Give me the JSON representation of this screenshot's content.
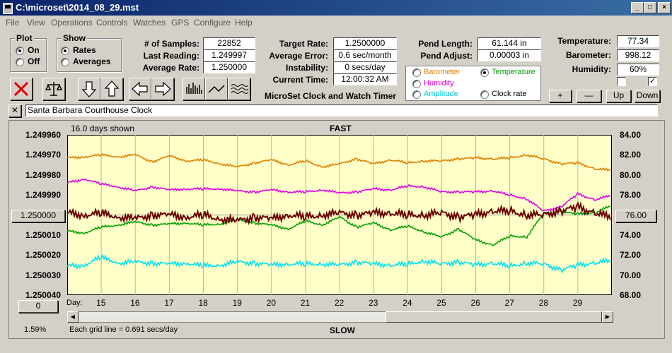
{
  "window": {
    "title": "C:\\microset\\2014_08_29.mst"
  },
  "menu": [
    "File",
    "View",
    "Operations",
    "Controls",
    "Watches",
    "GPS",
    "Configure",
    "Help"
  ],
  "plot_group": {
    "title": "Plot",
    "on": "On",
    "off": "Off",
    "selected": "On"
  },
  "show_group": {
    "title": "Show",
    "rates": "Rates",
    "averages": "Averages",
    "selected": "Rates"
  },
  "stats": {
    "samples_label": "# of Samples:",
    "samples": "22852",
    "last_label": "Last Reading:",
    "last": "1.249997",
    "avg_rate_label": "Average Rate:",
    "avg_rate": "1.250000",
    "target_label": "Target Rate:",
    "target": "1.2500000",
    "avg_err_label": "Average Error:",
    "avg_err": "0.6 sec/month",
    "instab_label": "Instability:",
    "instab": "0 secs/day",
    "time_label": "Current Time:",
    "time": "12:00:32 AM",
    "pend_len_label": "Pend Length:",
    "pend_len": "61.144 in",
    "pend_adj_label": "Pend Adjust:",
    "pend_adj": "0.00003 in",
    "temp_label": "Temperature:",
    "temp": "77.34",
    "baro_label": "Barometer:",
    "baro": "998.12",
    "hum_label": "Humidity:",
    "hum": "60%"
  },
  "app_caption": "MicroSet Clock and Watch Timer",
  "sensor_select": {
    "barometer": "Barometer",
    "temperature": "Temperature",
    "humidity": "Humidity",
    "amplitude": "Amplitude",
    "clock_rate": "Clock rate",
    "selected": "Temperature"
  },
  "small_buttons": {
    "plus": "+",
    "minus": "—",
    "up": "Up",
    "down": "Down"
  },
  "clock_name": "Santa Barbara Courthouse Clock",
  "close_x": "✕",
  "chart_header": {
    "days_shown": "16.0 days shown",
    "fast": "FAST",
    "slow": "SLOW",
    "grid_note": "Each grid line = 0.691 secs/day",
    "percent": "1.59%",
    "center_left": "1.250000",
    "center_right": "76.00",
    "zero_btn": "0",
    "day_label": "Day:"
  },
  "colors": {
    "plot_bg": "#ffffc8",
    "rate": "#6b0000",
    "temperature": "#00a000",
    "barometer": "#e08000",
    "humidity": "#e000e0",
    "amplitude": "#00e0f0"
  },
  "chart_data": {
    "type": "line",
    "y_left_ticks": [
      "1.249960",
      "1.249970",
      "1.249980",
      "1.249990",
      "1.250000",
      "1.250010",
      "1.250020",
      "1.250030",
      "1.250040"
    ],
    "y_right_ticks": [
      "84.00",
      "82.00",
      "80.00",
      "78.00",
      "76.00",
      "74.00",
      "72.00",
      "70.00",
      "68.00"
    ],
    "x_ticks": [
      "15",
      "16",
      "17",
      "18",
      "19",
      "20",
      "21",
      "22",
      "23",
      "24",
      "25",
      "26",
      "27",
      "28",
      "29"
    ],
    "x": [
      14,
      14.5,
      15,
      15.5,
      16,
      16.5,
      17,
      17.5,
      18,
      18.5,
      19,
      19.5,
      20,
      20.5,
      21,
      21.5,
      22,
      22.5,
      23,
      23.5,
      24,
      24.5,
      25,
      25.5,
      26,
      26.5,
      27,
      27.5,
      28,
      28.5,
      29,
      29.5,
      30
    ],
    "x_range": [
      14,
      30
    ],
    "series": [
      {
        "key": "rate",
        "axis": "left",
        "values": [
          1.249999,
          1.25,
          1.249999,
          1.250001,
          1.250002,
          1.25,
          1.25,
          1.250001,
          1.25,
          1.250002,
          1.250003,
          1.250001,
          1.250002,
          1.25,
          1.250001,
          1.25,
          1.249999,
          1.25,
          1.249999,
          1.249999,
          1.25,
          1.25,
          1.249999,
          1.250001,
          1.25,
          1.249998,
          1.249998,
          1.25,
          1.25,
          1.249998,
          1.249996,
          1.249999,
          1.250001
        ]
      },
      {
        "key": "temperature",
        "axis": "right",
        "values": [
          74.4,
          74.2,
          74.8,
          75.0,
          75.3,
          75.0,
          75.1,
          75.2,
          75.0,
          75.1,
          75.5,
          75.2,
          75.0,
          74.6,
          75.4,
          75.0,
          75.8,
          74.8,
          75.2,
          74.5,
          74.9,
          74.3,
          73.8,
          74.6,
          73.5,
          73.0,
          73.9,
          73.8,
          76.2,
          76.3,
          76.1,
          76.2,
          77.0
        ]
      },
      {
        "key": "barometer",
        "axis": "right",
        "values": [
          81.7,
          81.8,
          82.0,
          81.8,
          82.0,
          81.3,
          81.9,
          81.4,
          81.5,
          81.1,
          80.8,
          81.2,
          81.5,
          81.0,
          81.4,
          80.8,
          81.1,
          81.6,
          81.1,
          81.5,
          81.2,
          81.4,
          81.4,
          81.6,
          81.7,
          81.6,
          81.7,
          82.0,
          81.6,
          81.1,
          81.2,
          80.6,
          80.5
        ]
      },
      {
        "key": "humidity",
        "axis": "right",
        "values": [
          79.2,
          79.6,
          79.1,
          78.8,
          78.4,
          78.8,
          78.5,
          78.6,
          78.6,
          78.6,
          78.4,
          78.3,
          78.5,
          78.3,
          78.3,
          78.5,
          78.2,
          78.3,
          78.6,
          78.5,
          78.9,
          78.8,
          78.3,
          78.3,
          78.3,
          78.4,
          78.0,
          77.6,
          76.4,
          76.8,
          78.1,
          77.5,
          78.0
        ]
      },
      {
        "key": "amplitude",
        "axis": "right",
        "values": [
          70.9,
          71.0,
          71.8,
          71.2,
          71.3,
          71.2,
          71.1,
          71.2,
          70.9,
          71.0,
          71.3,
          71.2,
          71.0,
          71.1,
          71.1,
          71.1,
          71.0,
          71.3,
          71.1,
          71.0,
          71.1,
          71.4,
          71.1,
          71.3,
          71.0,
          71.2,
          70.9,
          71.2,
          71.1,
          70.5,
          71.0,
          71.2,
          71.5
        ]
      }
    ],
    "grid": true
  }
}
